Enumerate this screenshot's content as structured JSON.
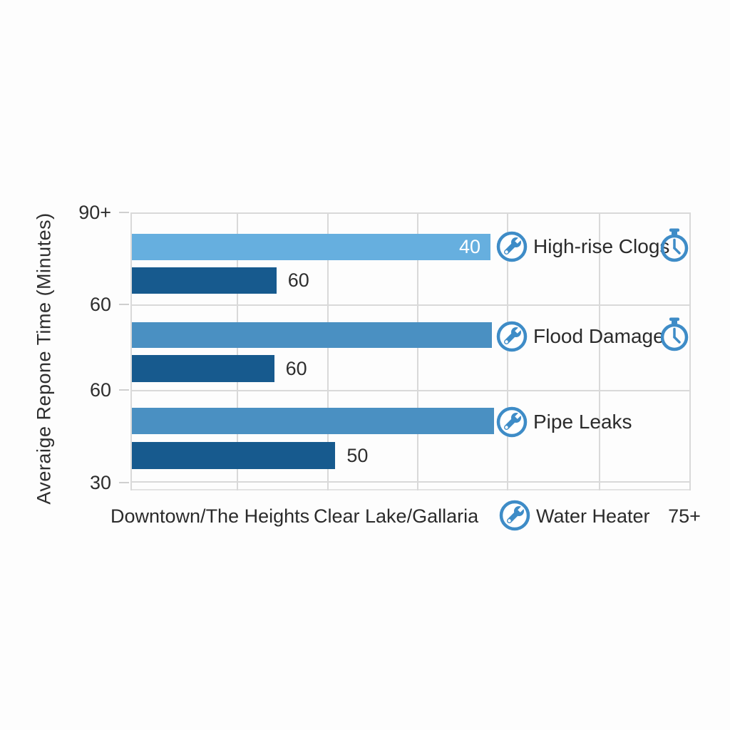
{
  "chart_data": {
    "type": "bar",
    "orientation": "horizontal",
    "y_axis_title": "Averaige Repone Time (Minutes)",
    "y_ticks": [
      "90+",
      "60",
      "60",
      "30"
    ],
    "x_axis_labels": [
      "Downtown/The Heights",
      "Clear Lake/Gallaria"
    ],
    "x_axis_extra_tick": "75+",
    "grid": true,
    "groups": [
      {
        "label": "High-rise Clogs",
        "row_icons": [
          "wrench",
          "stopwatch"
        ],
        "bars": [
          {
            "series": "light",
            "value": 40,
            "value_label": "40",
            "label_position": "inside",
            "length_pct": 64.0
          },
          {
            "series": "dark",
            "value": 60,
            "value_label": "60",
            "label_position": "outside",
            "length_pct": 25.8
          }
        ]
      },
      {
        "label": "Flood Damage",
        "row_icons": [
          "wrench",
          "stopwatch"
        ],
        "bars": [
          {
            "series": "medium",
            "value": null,
            "value_label": "",
            "label_position": "none",
            "length_pct": 64.2
          },
          {
            "series": "dark",
            "value": 60,
            "value_label": "60",
            "label_position": "outside",
            "length_pct": 25.4
          }
        ]
      },
      {
        "label": "Pipe Leaks",
        "row_icons": [
          "wrench"
        ],
        "bars": [
          {
            "series": "medium",
            "value": null,
            "value_label": "",
            "label_position": "none",
            "length_pct": 64.6
          },
          {
            "series": "dark",
            "value": 50,
            "value_label": "50",
            "label_position": "outside",
            "length_pct": 36.3
          }
        ]
      }
    ],
    "footer_legend": {
      "icon": "wrench",
      "label": "Water Heater"
    },
    "colors": {
      "bar_light": "#66afdf",
      "bar_medium": "#4a90c2",
      "bar_dark": "#175a8e",
      "icon_blue": "#3e8cc7",
      "grid_line": "#d9d9d9",
      "text": "#2d2d2d",
      "value_inside_text": "#ffffff",
      "background": "#fdfdfd"
    }
  }
}
